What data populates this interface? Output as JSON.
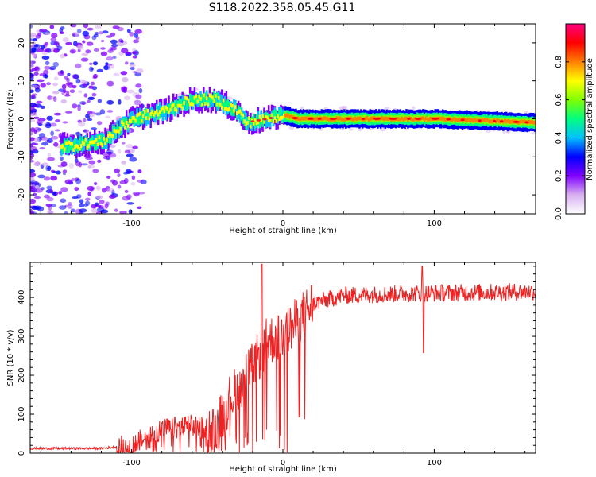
{
  "title": "S118.2022.358.05.45.G11",
  "chart_data": [
    {
      "type": "heatmap",
      "xlabel": "Height of straight line (km)",
      "ylabel": "Frequency (Hz)",
      "xlim": [
        -167,
        167
      ],
      "ylim": [
        -25,
        25
      ],
      "xticks": [
        -100,
        0,
        100
      ],
      "yticks": [
        -20,
        -10,
        0,
        10,
        20
      ],
      "colorbar": {
        "label": "Normalized spectral amplitude",
        "range": [
          0,
          1
        ],
        "ticks": [
          0.0,
          0.2,
          0.4,
          0.6,
          0.8
        ],
        "colors": [
          "#ffffff",
          "#d8b0f0",
          "#8000ff",
          "#0000ff",
          "#00c0ff",
          "#00ff80",
          "#80ff00",
          "#ffff00",
          "#ff8000",
          "#ff0000",
          "#ff0080"
        ]
      },
      "ridge": [
        {
          "x": -140,
          "y": -7
        },
        {
          "x": -120,
          "y": -6
        },
        {
          "x": -100,
          "y": 0
        },
        {
          "x": -80,
          "y": 2
        },
        {
          "x": -60,
          "y": 5
        },
        {
          "x": -45,
          "y": 5
        },
        {
          "x": -30,
          "y": 2
        },
        {
          "x": -25,
          "y": -1
        },
        {
          "x": -10,
          "y": 0
        },
        {
          "x": 0,
          "y": 1
        },
        {
          "x": 10,
          "y": 0
        },
        {
          "x": 100,
          "y": 0
        },
        {
          "x": 167,
          "y": -1
        }
      ],
      "grid": false
    },
    {
      "type": "line",
      "xlabel": "Height of straight line (km)",
      "ylabel": "SNR (10 * v/v)",
      "xlim": [
        -167,
        167
      ],
      "ylim": [
        0,
        490
      ],
      "xticks": [
        -100,
        0,
        100
      ],
      "yticks": [
        0,
        100,
        200,
        300,
        400
      ],
      "color": "#ee2222",
      "trend": [
        {
          "x": -167,
          "y": 12
        },
        {
          "x": -120,
          "y": 12
        },
        {
          "x": -100,
          "y": 20
        },
        {
          "x": -80,
          "y": 60
        },
        {
          "x": -60,
          "y": 70
        },
        {
          "x": -45,
          "y": 60
        },
        {
          "x": -35,
          "y": 140
        },
        {
          "x": -20,
          "y": 220
        },
        {
          "x": -10,
          "y": 290
        },
        {
          "x": 0,
          "y": 300
        },
        {
          "x": 10,
          "y": 340
        },
        {
          "x": 20,
          "y": 385
        },
        {
          "x": 40,
          "y": 405
        },
        {
          "x": 80,
          "y": 410
        },
        {
          "x": 167,
          "y": 415
        }
      ],
      "spikes": [
        {
          "x": -14,
          "y": 485
        },
        {
          "x": 93,
          "y": 258
        },
        {
          "x": 92,
          "y": 480
        }
      ],
      "grid": false
    }
  ]
}
